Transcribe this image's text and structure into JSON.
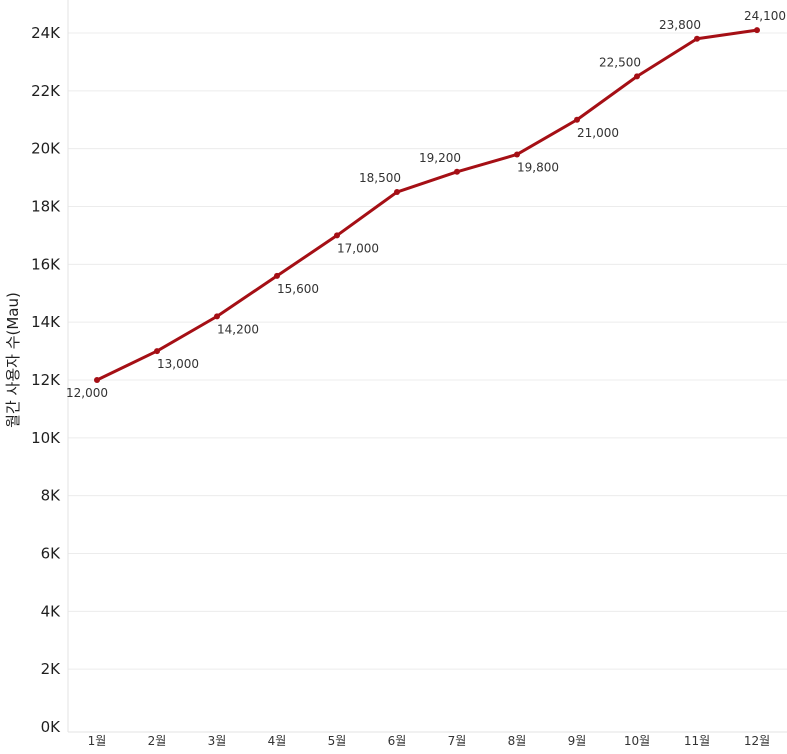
{
  "chart_data": {
    "type": "line",
    "title": "",
    "xlabel": "",
    "ylabel": "월간 사용자 수(Mau)",
    "categories": [
      "1월",
      "2월",
      "3월",
      "4월",
      "5월",
      "6월",
      "7월",
      "8월",
      "9월",
      "10월",
      "11월",
      "12월"
    ],
    "series": [
      {
        "values": [
          12000,
          13000,
          14200,
          15600,
          17000,
          18500,
          19200,
          19800,
          21000,
          22500,
          23800,
          24100
        ],
        "data_labels": [
          "12,000",
          "13,000",
          "14,200",
          "15,600",
          "17,000",
          "18,500",
          "19,200",
          "19,800",
          "21,000",
          "22,500",
          "23,800",
          "24,100"
        ],
        "label_positions": [
          "below",
          "below",
          "below",
          "below",
          "below",
          "above",
          "above",
          "below",
          "below",
          "above",
          "above",
          "above"
        ],
        "color": "#a50f15"
      }
    ],
    "ylim": [
      0,
      24000
    ],
    "yticks": [
      0,
      2000,
      4000,
      6000,
      8000,
      10000,
      12000,
      14000,
      16000,
      18000,
      20000,
      22000,
      24000
    ],
    "ytick_labels": [
      "0K",
      "2K",
      "4K",
      "6K",
      "8K",
      "10K",
      "12K",
      "14K",
      "16K",
      "18K",
      "20K",
      "22K",
      "24K"
    ],
    "grid": true,
    "legend": "none"
  }
}
